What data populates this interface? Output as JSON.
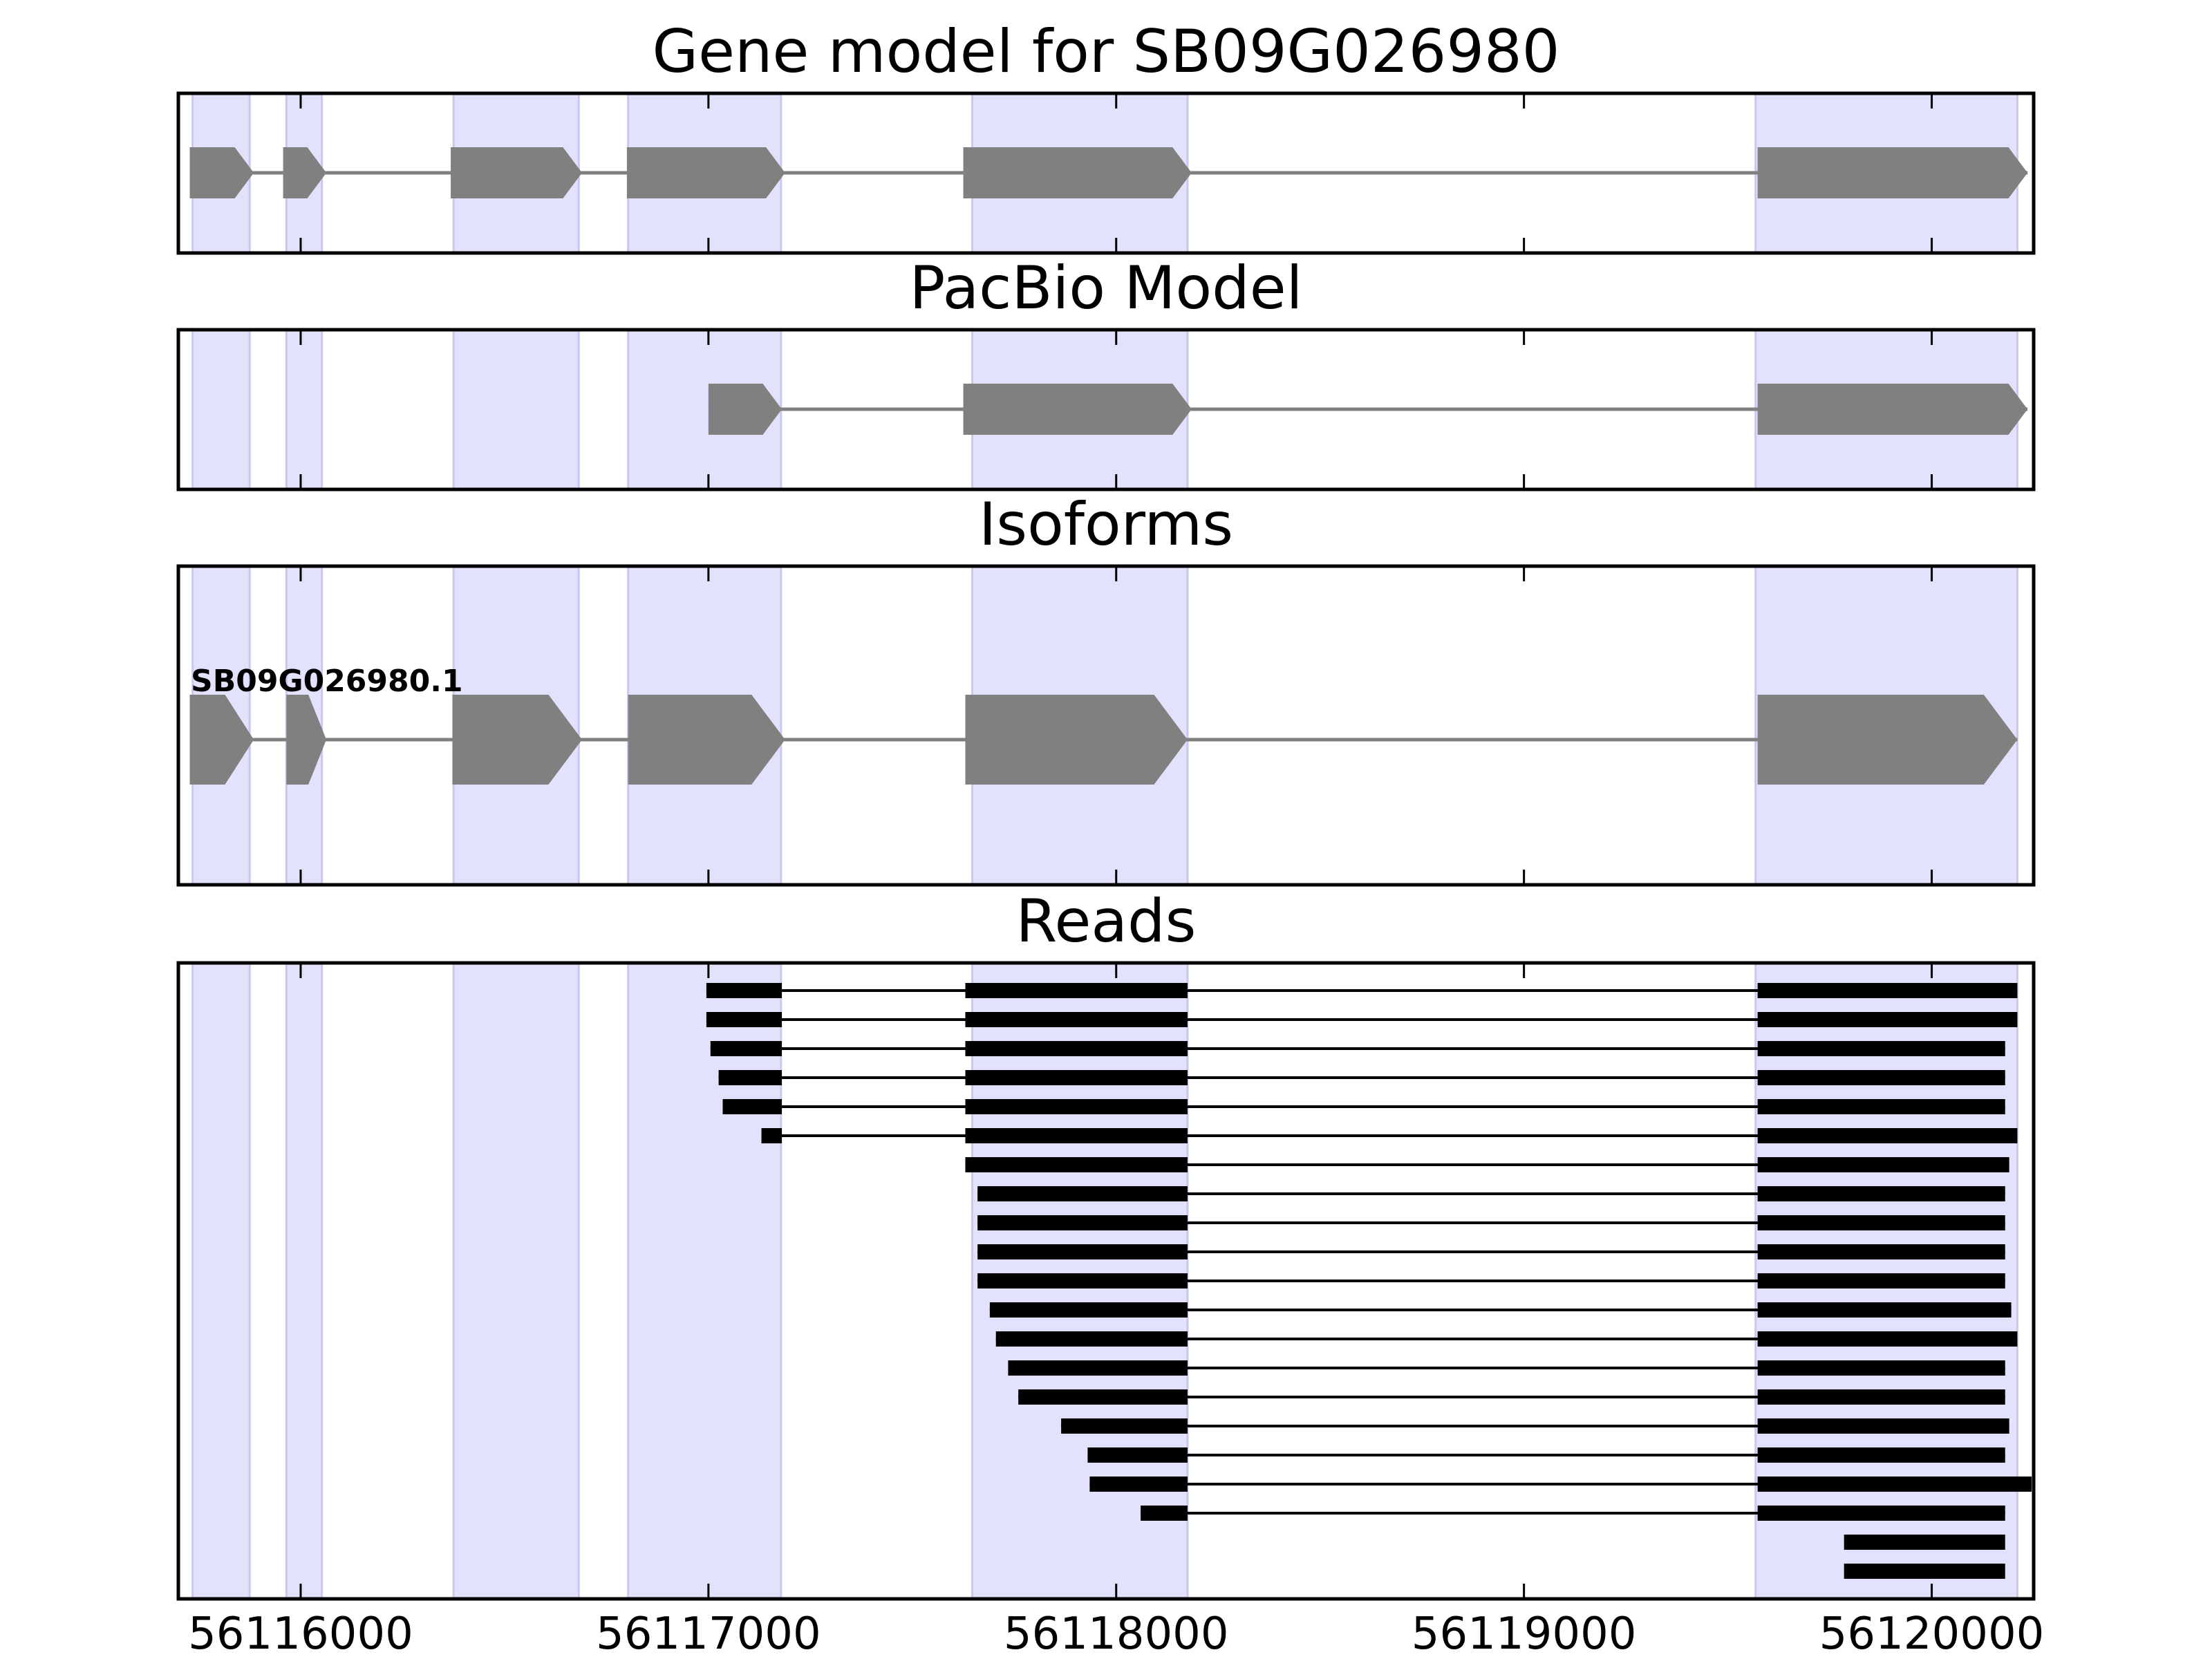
{
  "chart_data": {
    "type": "gene-track",
    "colors": {
      "exon_highlight": "#e2e2fc",
      "exon_highlight_edge": "#c8c8f0",
      "model_feature": "#808080",
      "read_feature": "#000000",
      "axes": "#000000"
    },
    "x_axis": {
      "range": [
        56115700,
        56120250
      ],
      "ticks": [
        {
          "value": 56116000,
          "label": "56116000"
        },
        {
          "value": 56117000,
          "label": "56117000"
        },
        {
          "value": 56118000,
          "label": "56118000"
        },
        {
          "value": 56119000,
          "label": "56119000"
        },
        {
          "value": 56120000,
          "label": "56120000"
        }
      ]
    },
    "exon_regions": [
      [
        56115735,
        56115875
      ],
      [
        56115965,
        56116052
      ],
      [
        56116375,
        56116682
      ],
      [
        56116803,
        56117178
      ],
      [
        56117647,
        56118175
      ],
      [
        56119568,
        56120210
      ]
    ],
    "panels": [
      {
        "id": "gene-model",
        "title": "Gene model for SB09G026980",
        "models": [
          {
            "label": "",
            "exons": [
              [
                56115728,
                56115885
              ],
              [
                56115957,
                56116063
              ],
              [
                56116368,
                56116690
              ],
              [
                56116800,
                56117188
              ],
              [
                56117625,
                56118185
              ],
              [
                56119573,
                56120235
              ]
            ]
          }
        ]
      },
      {
        "id": "pacbio-model",
        "title": "PacBio Model",
        "models": [
          {
            "label": "",
            "exons": [
              [
                56117000,
                56117180
              ],
              [
                56117625,
                56118185
              ],
              [
                56119573,
                56120235
              ]
            ]
          }
        ]
      },
      {
        "id": "isoforms",
        "title": "Isoforms",
        "models": [
          {
            "label": "SB09G026980.1",
            "exons": [
              [
                56115728,
                56115885
              ],
              [
                56115965,
                56116063
              ],
              [
                56116372,
                56116690
              ],
              [
                56116803,
                56117188
              ],
              [
                56117630,
                56118175
              ],
              [
                56119573,
                56120210
              ]
            ]
          }
        ]
      },
      {
        "id": "reads",
        "title": "Reads",
        "reads": [
          [
            [
              56116995,
              56117180
            ],
            [
              56117630,
              56118175
            ],
            [
              56119573,
              56120210
            ]
          ],
          [
            [
              56116995,
              56117180
            ],
            [
              56117630,
              56118175
            ],
            [
              56119573,
              56120210
            ]
          ],
          [
            [
              56117005,
              56117180
            ],
            [
              56117630,
              56118175
            ],
            [
              56119573,
              56120180
            ]
          ],
          [
            [
              56117025,
              56117180
            ],
            [
              56117630,
              56118175
            ],
            [
              56119573,
              56120180
            ]
          ],
          [
            [
              56117035,
              56117180
            ],
            [
              56117630,
              56118175
            ],
            [
              56119573,
              56120180
            ]
          ],
          [
            [
              56117130,
              56117180
            ],
            [
              56117630,
              56118175
            ],
            [
              56119573,
              56120210
            ]
          ],
          [
            [
              56117630,
              56118175
            ],
            [
              56119573,
              56120190
            ]
          ],
          [
            [
              56117660,
              56118175
            ],
            [
              56119573,
              56120180
            ]
          ],
          [
            [
              56117660,
              56118175
            ],
            [
              56119573,
              56120180
            ]
          ],
          [
            [
              56117660,
              56118175
            ],
            [
              56119573,
              56120180
            ]
          ],
          [
            [
              56117660,
              56118175
            ],
            [
              56119573,
              56120180
            ]
          ],
          [
            [
              56117690,
              56118175
            ],
            [
              56119573,
              56120195
            ]
          ],
          [
            [
              56117705,
              56118175
            ],
            [
              56119573,
              56120210
            ]
          ],
          [
            [
              56117735,
              56118175
            ],
            [
              56119573,
              56120180
            ]
          ],
          [
            [
              56117760,
              56118175
            ],
            [
              56119573,
              56120180
            ]
          ],
          [
            [
              56117865,
              56118175
            ],
            [
              56119573,
              56120190
            ]
          ],
          [
            [
              56117930,
              56118175
            ],
            [
              56119573,
              56120180
            ]
          ],
          [
            [
              56117935,
              56118175
            ],
            [
              56119573,
              56120245
            ]
          ],
          [
            [
              56118060,
              56118175
            ],
            [
              56119573,
              56120180
            ]
          ],
          [
            [
              56119785,
              56120180
            ]
          ],
          [
            [
              56119785,
              56120180
            ]
          ]
        ]
      }
    ]
  }
}
